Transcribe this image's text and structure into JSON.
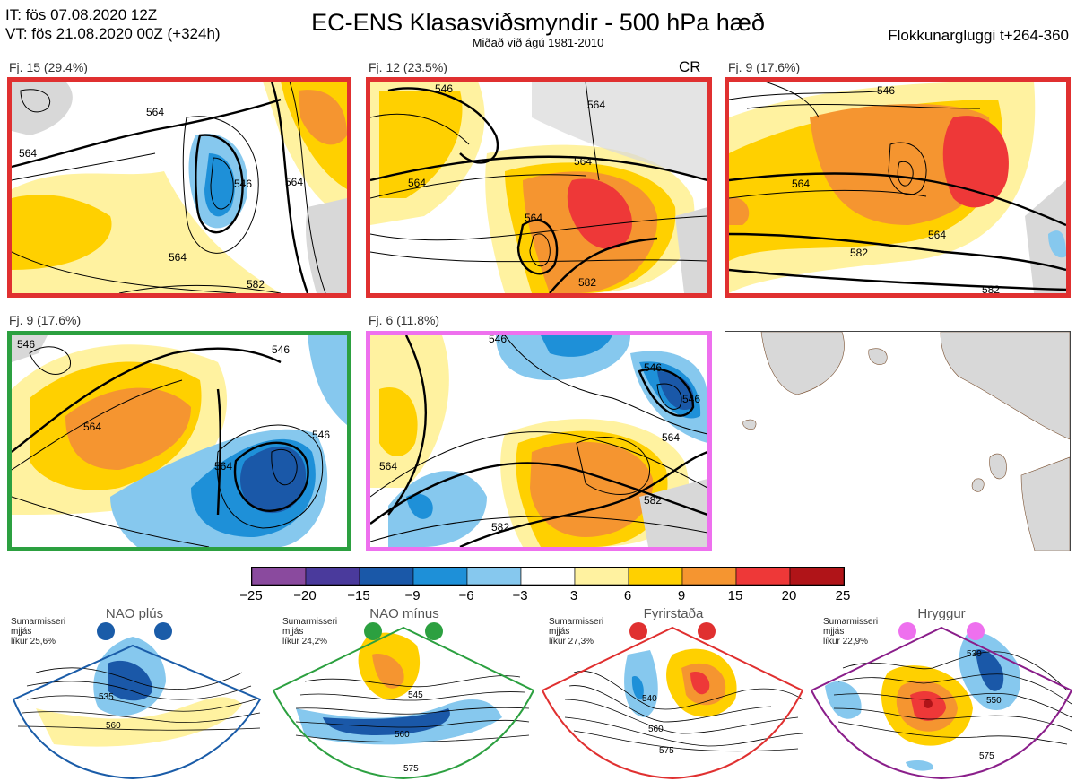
{
  "header": {
    "init": "IT: fös 07.08.2020 12Z",
    "valid": "VT: fös 21.08.2020 00Z  (+324h)",
    "title": "EC-ENS Klasasviðsmyndir - 500 hPa hæð",
    "subtitle": "Miðað við ágú 1981-2010",
    "window": "Flokkunargluggi t+264-360"
  },
  "panels": [
    {
      "label": "Fj. 15 (29.4%)",
      "border": "#e03030"
    },
    {
      "label": "Fj. 12 (23.5%)",
      "border": "#e03030",
      "tag": "CR"
    },
    {
      "label": "Fj. 9 (17.6%)",
      "border": "#e03030"
    },
    {
      "label": "Fj. 9 (17.6%)",
      "border": "#2ca040"
    },
    {
      "label": "Fj. 6 (11.8%)",
      "border": "#ee70ee"
    }
  ],
  "contour_labels": {
    "p1": [
      "564",
      "564",
      "546",
      "564",
      "564",
      "582"
    ],
    "p2": [
      "546",
      "564",
      "564",
      "564",
      "582",
      "564"
    ],
    "p3": [
      "546",
      "564",
      "564",
      "582",
      "582"
    ],
    "p4": [
      "546",
      "564",
      "546",
      "564",
      "546"
    ],
    "p5": [
      "546",
      "564",
      "546",
      "546",
      "564",
      "582",
      "582"
    ]
  },
  "colorbar": {
    "ticks": [
      "−25",
      "−20",
      "−15",
      "−9",
      "−6",
      "−3",
      "3",
      "6",
      "9",
      "15",
      "20",
      "25"
    ],
    "colors": [
      "#8a4a9e",
      "#4a3a9c",
      "#1a58a8",
      "#1e90d8",
      "#86c8ee",
      "#ffffff",
      "#fff2a0",
      "#ffd000",
      "#f59530",
      "#ee3838",
      "#b01418"
    ]
  },
  "regimes": [
    {
      "name": "NAO plús",
      "line1": "Sumarmisseri",
      "line2": "mjjás",
      "line3": "líkur 25,6%",
      "color": "#1a5ca8",
      "labels": [
        "535",
        "560"
      ]
    },
    {
      "name": "NAO mínus",
      "line1": "Sumarmisseri",
      "line2": "mjjás",
      "line3": "líkur 24,2%",
      "color": "#2ca040",
      "labels": [
        "545",
        "560",
        "575"
      ]
    },
    {
      "name": "Fyrirstaða",
      "line1": "Sumarmisseri",
      "line2": "mjjás",
      "line3": "líkur 27,3%",
      "color": "#e03030",
      "labels": [
        "540",
        "560",
        "575"
      ]
    },
    {
      "name": "Hryggur",
      "line1": "Sumarmisseri",
      "line2": "mjjás",
      "line3": "líkur 22,9%",
      "color": "#ee70ee",
      "labels": [
        "530",
        "550",
        "575"
      ]
    }
  ]
}
